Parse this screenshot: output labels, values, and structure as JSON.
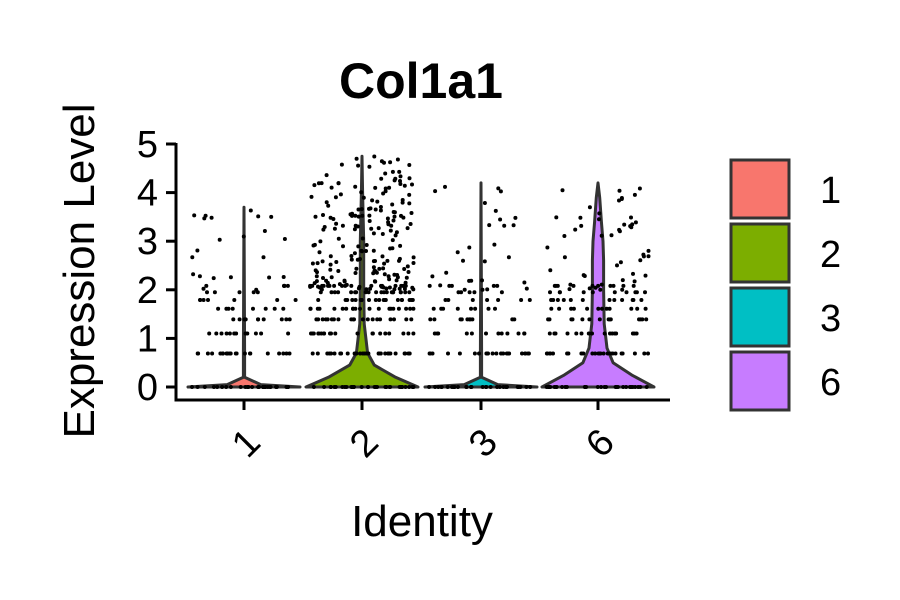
{
  "chart_data": {
    "type": "violin",
    "title": "Col1a1",
    "xlabel": "Identity",
    "ylabel": "Expression Level",
    "categories": [
      "1",
      "2",
      "3",
      "6"
    ],
    "ylim": [
      0,
      5
    ],
    "yticks": [
      0,
      1,
      2,
      3,
      4,
      5
    ],
    "x_tick_rotation_deg": 45,
    "show_points": true,
    "legend": {
      "position": "right",
      "entries": [
        {
          "label": "1",
          "color": "#F8766D"
        },
        {
          "label": "2",
          "color": "#7CAE00"
        },
        {
          "label": "3",
          "color": "#00BFC4"
        },
        {
          "label": "6",
          "color": "#C77CFF"
        }
      ]
    },
    "series": [
      {
        "category": "1",
        "max": 3.7,
        "density": [
          [
            0,
            1.0
          ],
          [
            0.05,
            0.3
          ],
          [
            0.2,
            0.01
          ],
          [
            0.7,
            0.01
          ],
          [
            3.7,
            0.0
          ]
        ]
      },
      {
        "category": "2",
        "max": 4.75,
        "density": [
          [
            0,
            1.0
          ],
          [
            0.2,
            0.6
          ],
          [
            0.45,
            0.22
          ],
          [
            0.7,
            0.1
          ],
          [
            1.3,
            0.04
          ],
          [
            2.0,
            0.03
          ],
          [
            3.0,
            0.03
          ],
          [
            4.0,
            0.01
          ],
          [
            4.75,
            0.0
          ]
        ]
      },
      {
        "category": "3",
        "max": 4.2,
        "density": [
          [
            0,
            1.0
          ],
          [
            0.05,
            0.3
          ],
          [
            0.2,
            0.01
          ],
          [
            0.7,
            0.01
          ],
          [
            4.2,
            0.0
          ]
        ]
      },
      {
        "category": "6",
        "max": 4.2,
        "density": [
          [
            0,
            1.0
          ],
          [
            0.25,
            0.6
          ],
          [
            0.5,
            0.27
          ],
          [
            0.8,
            0.16
          ],
          [
            1.3,
            0.11
          ],
          [
            2.0,
            0.1
          ],
          [
            2.6,
            0.1
          ],
          [
            3.0,
            0.09
          ],
          [
            3.4,
            0.06
          ],
          [
            3.9,
            0.03
          ],
          [
            4.2,
            0.0
          ]
        ]
      }
    ]
  }
}
